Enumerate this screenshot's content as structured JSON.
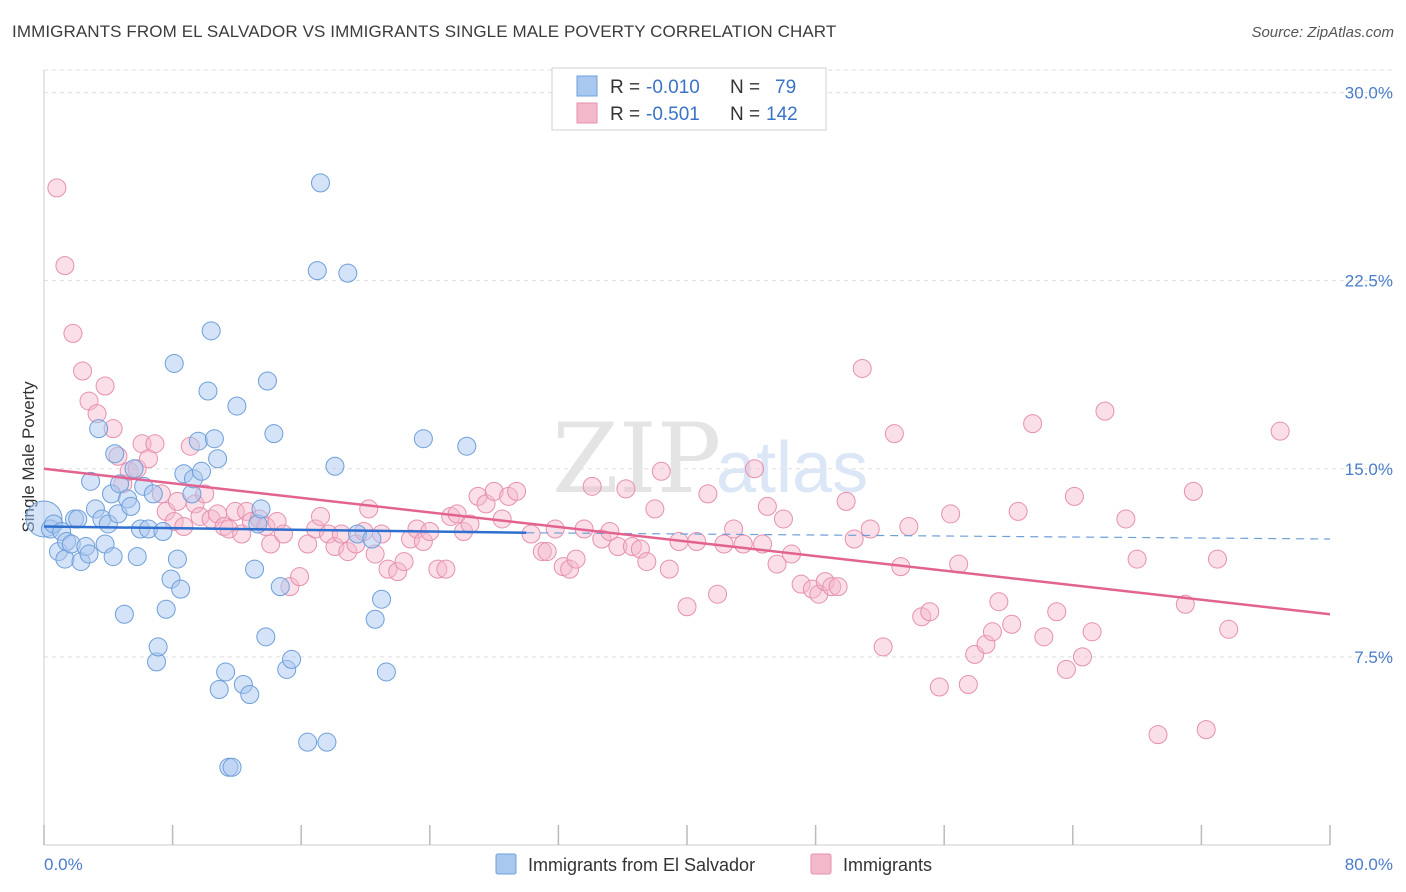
{
  "title": "IMMIGRANTS FROM EL SALVADOR VS IMMIGRANTS SINGLE MALE POVERTY CORRELATION CHART",
  "source": "Source: ZipAtlas.com",
  "watermark": {
    "part1": "ZIP",
    "part2": "atlas"
  },
  "colors": {
    "blue_fill": "#a9c8ef",
    "blue_stroke": "#6e9fd9",
    "blue_line": "#2f6fcf",
    "pink_fill": "#f4b8cb",
    "pink_stroke": "#e690ae",
    "pink_line": "#e2638f",
    "grid": "#dddddd",
    "tick_text": "#4a7cc9"
  },
  "legend": {
    "row1": {
      "r_label": "R =",
      "r_value": "-0.010",
      "n_label": "N =",
      "n_value": "79"
    },
    "row2": {
      "r_label": "R =",
      "r_value": "-0.501",
      "n_label": "N =",
      "n_value": "142"
    }
  },
  "chart_data": {
    "type": "scatter",
    "title": "IMMIGRANTS FROM EL SALVADOR VS IMMIGRANTS SINGLE MALE POVERTY CORRELATION CHART",
    "xlabel": "",
    "ylabel": "Single Male Poverty",
    "xlim": [
      0,
      80
    ],
    "ylim": [
      0,
      30.9
    ],
    "x_tick_labels": [
      "0.0%",
      "80.0%"
    ],
    "y_ticks": [
      7.5,
      15.0,
      22.5,
      30.0
    ],
    "y_tick_labels": [
      "7.5%",
      "15.0%",
      "22.5%",
      "30.0%"
    ],
    "grid": "horizontal dashed",
    "legend_position": "top-center",
    "series": [
      {
        "name": "Immigrants from El Salvador",
        "R": -0.01,
        "N": 79,
        "trend": {
          "x": [
            0,
            30
          ],
          "y": [
            12.7,
            12.45
          ]
        },
        "trend_dashed": {
          "x": [
            30,
            80
          ],
          "y": [
            12.45,
            12.2
          ]
        },
        "points": [
          [
            0.0,
            13.0
          ],
          [
            0.4,
            12.6
          ],
          [
            0.6,
            12.8
          ],
          [
            0.9,
            11.7
          ],
          [
            1.1,
            12.5
          ],
          [
            1.3,
            11.4
          ],
          [
            1.4,
            12.1
          ],
          [
            1.7,
            12.0
          ],
          [
            1.9,
            13.0
          ],
          [
            2.1,
            13.0
          ],
          [
            2.3,
            11.3
          ],
          [
            2.6,
            11.9
          ],
          [
            2.8,
            11.6
          ],
          [
            2.9,
            14.5
          ],
          [
            3.2,
            13.4
          ],
          [
            3.4,
            16.6
          ],
          [
            3.6,
            13.0
          ],
          [
            3.8,
            12.0
          ],
          [
            4.0,
            12.8
          ],
          [
            4.2,
            14.0
          ],
          [
            4.3,
            11.5
          ],
          [
            4.4,
            15.6
          ],
          [
            4.6,
            13.2
          ],
          [
            4.7,
            14.4
          ],
          [
            5.0,
            9.2
          ],
          [
            5.2,
            13.8
          ],
          [
            5.4,
            13.5
          ],
          [
            5.6,
            15.0
          ],
          [
            5.8,
            11.5
          ],
          [
            6.0,
            12.6
          ],
          [
            6.2,
            14.3
          ],
          [
            6.5,
            12.6
          ],
          [
            6.8,
            14.0
          ],
          [
            7.0,
            7.3
          ],
          [
            7.1,
            7.9
          ],
          [
            7.4,
            12.5
          ],
          [
            7.6,
            9.4
          ],
          [
            7.9,
            10.6
          ],
          [
            8.1,
            19.2
          ],
          [
            8.3,
            11.4
          ],
          [
            8.5,
            10.2
          ],
          [
            8.7,
            14.8
          ],
          [
            9.2,
            14.0
          ],
          [
            9.3,
            14.6
          ],
          [
            9.6,
            16.1
          ],
          [
            9.8,
            14.9
          ],
          [
            10.2,
            18.1
          ],
          [
            10.4,
            20.5
          ],
          [
            10.6,
            16.2
          ],
          [
            10.8,
            15.4
          ],
          [
            10.9,
            6.2
          ],
          [
            11.3,
            6.9
          ],
          [
            11.5,
            3.1
          ],
          [
            11.7,
            3.1
          ],
          [
            12.0,
            17.5
          ],
          [
            12.4,
            6.4
          ],
          [
            12.8,
            6.0
          ],
          [
            13.1,
            11.0
          ],
          [
            13.3,
            12.8
          ],
          [
            13.5,
            13.4
          ],
          [
            13.8,
            8.3
          ],
          [
            13.9,
            18.5
          ],
          [
            14.3,
            16.4
          ],
          [
            14.7,
            10.3
          ],
          [
            15.1,
            7.0
          ],
          [
            15.4,
            7.4
          ],
          [
            16.4,
            4.1
          ],
          [
            17.0,
            22.9
          ],
          [
            17.2,
            26.4
          ],
          [
            17.6,
            4.1
          ],
          [
            18.1,
            15.1
          ],
          [
            18.9,
            22.8
          ],
          [
            19.5,
            12.4
          ],
          [
            20.4,
            12.2
          ],
          [
            20.6,
            9.0
          ],
          [
            21.0,
            9.8
          ],
          [
            21.3,
            6.9
          ],
          [
            23.6,
            16.2
          ],
          [
            26.3,
            15.9
          ]
        ]
      },
      {
        "name": "Immigrants",
        "R": -0.501,
        "N": 142,
        "trend": {
          "x": [
            0,
            80
          ],
          "y": [
            15.0,
            9.2
          ]
        },
        "points": [
          [
            0.8,
            26.2
          ],
          [
            1.3,
            23.1
          ],
          [
            1.8,
            20.4
          ],
          [
            2.4,
            18.9
          ],
          [
            2.8,
            17.7
          ],
          [
            3.3,
            17.2
          ],
          [
            3.8,
            18.3
          ],
          [
            4.3,
            16.6
          ],
          [
            4.6,
            15.5
          ],
          [
            4.9,
            14.4
          ],
          [
            5.3,
            14.9
          ],
          [
            5.8,
            15.0
          ],
          [
            6.1,
            16.0
          ],
          [
            6.5,
            15.4
          ],
          [
            6.9,
            16.0
          ],
          [
            7.3,
            14.0
          ],
          [
            7.6,
            13.3
          ],
          [
            8.1,
            12.9
          ],
          [
            8.3,
            13.7
          ],
          [
            8.7,
            12.7
          ],
          [
            9.1,
            15.9
          ],
          [
            9.4,
            13.6
          ],
          [
            9.7,
            13.1
          ],
          [
            10.0,
            14.0
          ],
          [
            10.4,
            13.0
          ],
          [
            10.8,
            13.2
          ],
          [
            11.2,
            12.7
          ],
          [
            11.5,
            12.6
          ],
          [
            11.9,
            13.3
          ],
          [
            12.3,
            12.4
          ],
          [
            12.6,
            13.3
          ],
          [
            12.9,
            12.9
          ],
          [
            13.4,
            13.0
          ],
          [
            13.8,
            12.7
          ],
          [
            14.1,
            12.0
          ],
          [
            14.5,
            12.9
          ],
          [
            14.9,
            12.4
          ],
          [
            15.3,
            10.3
          ],
          [
            15.9,
            10.7
          ],
          [
            16.4,
            12.0
          ],
          [
            16.9,
            12.6
          ],
          [
            17.2,
            13.1
          ],
          [
            17.7,
            12.4
          ],
          [
            18.1,
            11.9
          ],
          [
            18.5,
            12.4
          ],
          [
            18.9,
            11.7
          ],
          [
            19.4,
            12.0
          ],
          [
            19.9,
            12.5
          ],
          [
            20.2,
            13.4
          ],
          [
            20.6,
            11.6
          ],
          [
            21.0,
            12.4
          ],
          [
            21.4,
            11.0
          ],
          [
            22.0,
            10.9
          ],
          [
            22.4,
            11.3
          ],
          [
            22.8,
            12.2
          ],
          [
            23.2,
            12.6
          ],
          [
            23.6,
            12.1
          ],
          [
            24.0,
            12.5
          ],
          [
            24.5,
            11.0
          ],
          [
            25.0,
            11.0
          ],
          [
            25.3,
            13.1
          ],
          [
            25.7,
            13.2
          ],
          [
            26.1,
            12.5
          ],
          [
            26.5,
            12.8
          ],
          [
            27.0,
            13.9
          ],
          [
            27.5,
            13.6
          ],
          [
            28.0,
            14.1
          ],
          [
            28.5,
            13.0
          ],
          [
            28.9,
            13.9
          ],
          [
            29.4,
            14.1
          ],
          [
            30.3,
            12.4
          ],
          [
            31.0,
            11.7
          ],
          [
            31.3,
            11.7
          ],
          [
            31.8,
            12.6
          ],
          [
            32.3,
            11.1
          ],
          [
            32.7,
            11.0
          ],
          [
            33.1,
            11.4
          ],
          [
            33.6,
            12.6
          ],
          [
            34.1,
            14.3
          ],
          [
            34.7,
            12.2
          ],
          [
            35.2,
            12.5
          ],
          [
            35.7,
            11.9
          ],
          [
            36.2,
            14.2
          ],
          [
            36.6,
            11.9
          ],
          [
            37.1,
            11.8
          ],
          [
            37.5,
            11.3
          ],
          [
            38.0,
            13.4
          ],
          [
            38.4,
            14.9
          ],
          [
            38.9,
            11.0
          ],
          [
            39.5,
            12.1
          ],
          [
            40.0,
            9.5
          ],
          [
            40.6,
            12.1
          ],
          [
            41.3,
            14.0
          ],
          [
            41.9,
            10.0
          ],
          [
            42.3,
            12.0
          ],
          [
            42.9,
            12.6
          ],
          [
            43.5,
            12.0
          ],
          [
            44.2,
            15.0
          ],
          [
            44.7,
            12.0
          ],
          [
            45.0,
            13.5
          ],
          [
            45.6,
            11.2
          ],
          [
            46.0,
            13.0
          ],
          [
            46.5,
            11.6
          ],
          [
            47.1,
            10.4
          ],
          [
            47.8,
            10.2
          ],
          [
            48.2,
            10.0
          ],
          [
            48.6,
            10.5
          ],
          [
            49.0,
            10.3
          ],
          [
            49.4,
            10.3
          ],
          [
            49.9,
            13.7
          ],
          [
            50.4,
            12.2
          ],
          [
            50.9,
            19.0
          ],
          [
            51.4,
            12.6
          ],
          [
            52.2,
            7.9
          ],
          [
            52.9,
            16.4
          ],
          [
            53.3,
            11.1
          ],
          [
            53.8,
            12.7
          ],
          [
            54.6,
            9.1
          ],
          [
            55.1,
            9.3
          ],
          [
            55.7,
            6.3
          ],
          [
            56.4,
            13.2
          ],
          [
            56.9,
            11.2
          ],
          [
            57.5,
            6.4
          ],
          [
            57.9,
            7.6
          ],
          [
            58.6,
            8.0
          ],
          [
            59.0,
            8.5
          ],
          [
            59.4,
            9.7
          ],
          [
            60.2,
            8.8
          ],
          [
            60.6,
            13.3
          ],
          [
            61.5,
            16.8
          ],
          [
            62.2,
            8.3
          ],
          [
            63.0,
            9.3
          ],
          [
            63.6,
            7.0
          ],
          [
            64.1,
            13.9
          ],
          [
            64.6,
            7.5
          ],
          [
            65.2,
            8.5
          ],
          [
            66.0,
            17.3
          ],
          [
            67.3,
            13.0
          ],
          [
            68.0,
            11.4
          ],
          [
            69.3,
            4.4
          ],
          [
            71.0,
            9.6
          ],
          [
            71.5,
            14.1
          ],
          [
            72.3,
            4.6
          ],
          [
            73.0,
            11.4
          ],
          [
            73.7,
            8.6
          ],
          [
            76.9,
            16.5
          ]
        ]
      }
    ]
  },
  "bottom_legend": {
    "series1": "Immigrants from El Salvador",
    "series2": "Immigrants"
  }
}
